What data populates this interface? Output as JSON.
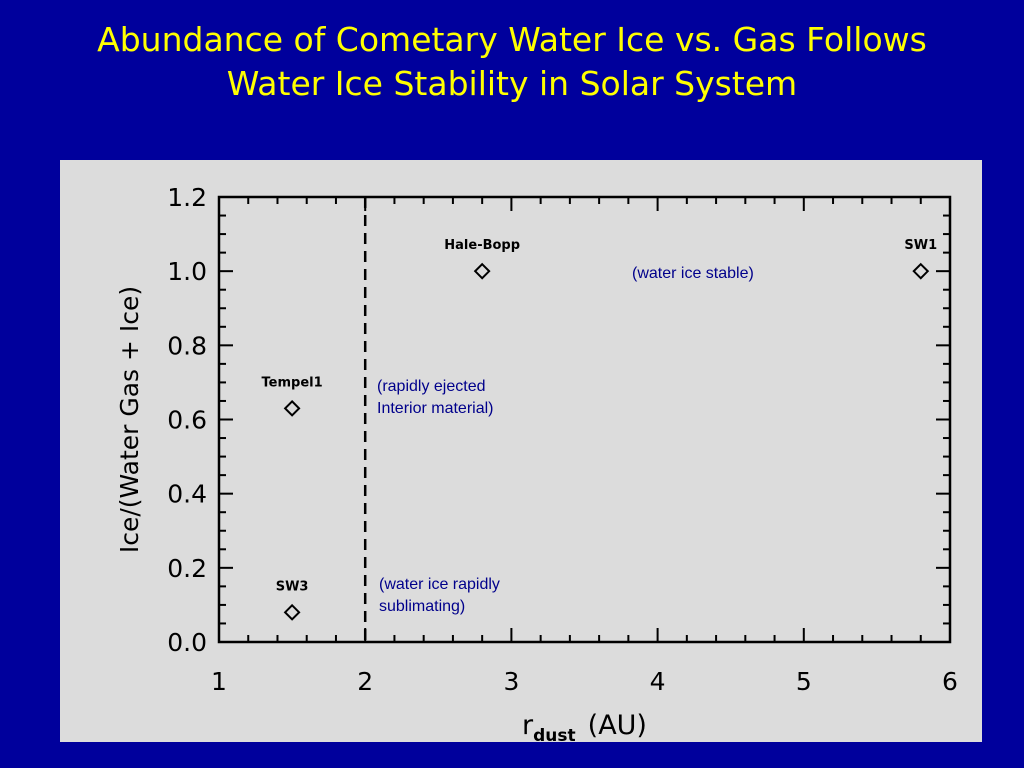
{
  "slide": {
    "title_line1": "Abundance of Cometary Water Ice vs. Gas Follows",
    "title_line2": "Water Ice Stability in Solar System"
  },
  "colors": {
    "background": "#00009c",
    "title": "#ffff00",
    "panel": "#dcdcdc",
    "plot_ink": "#000000",
    "annotation": "#00008b"
  },
  "chart_data": {
    "type": "scatter",
    "xlabel_main": "r",
    "xlabel_sub": "dust",
    "xlabel_unit": "(AU)",
    "ylabel": "Ice/(Water Gas + Ice)",
    "xlim": [
      1,
      6
    ],
    "ylim": [
      0.0,
      1.2
    ],
    "xticks": [
      1,
      2,
      3,
      4,
      5,
      6
    ],
    "xtick_labels": [
      "1",
      "2",
      "3",
      "4",
      "5",
      "6"
    ],
    "yticks": [
      0.0,
      0.2,
      0.4,
      0.6,
      0.8,
      1.0,
      1.2
    ],
    "ytick_labels": [
      "0.0",
      "0.2",
      "0.4",
      "0.6",
      "0.8",
      "1.0",
      "1.2"
    ],
    "marker": "diamond",
    "grid": false,
    "vline": {
      "x": 2,
      "style": "dashed"
    },
    "points": [
      {
        "label": "Hale-Bopp",
        "x": 2.8,
        "y": 1.0
      },
      {
        "label": "SW1",
        "x": 5.8,
        "y": 1.0
      },
      {
        "label": "Tempel1",
        "x": 1.5,
        "y": 0.63
      },
      {
        "label": "SW3",
        "x": 1.5,
        "y": 0.08
      }
    ],
    "annotations": [
      {
        "id": "stable",
        "lines": [
          "(water ice stable)"
        ]
      },
      {
        "id": "ejected",
        "lines": [
          "(rapidly ejected",
          "Interior material)"
        ]
      },
      {
        "id": "sublimating",
        "lines": [
          "(water ice rapidly",
          "sublimating)"
        ]
      }
    ]
  }
}
